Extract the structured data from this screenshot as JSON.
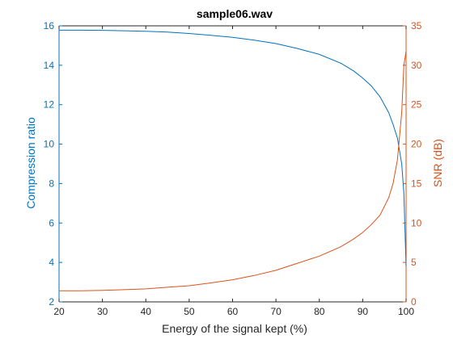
{
  "chart_data": {
    "type": "line",
    "title": "sample06.wav",
    "xlabel": "Energy of the signal kept (%)",
    "ylabel_left": "Compression ratio",
    "ylabel_right": "SNR (dB)",
    "xlim": [
      20,
      100
    ],
    "ylim_left": [
      2,
      16
    ],
    "ylim_right": [
      0,
      35
    ],
    "x_ticks": [
      "20",
      "30",
      "40",
      "50",
      "60",
      "70",
      "80",
      "90",
      "100"
    ],
    "y_ticks_left": [
      "2",
      "4",
      "6",
      "8",
      "10",
      "12",
      "14",
      "16"
    ],
    "y_ticks_right": [
      "0",
      "5",
      "10",
      "15",
      "20",
      "25",
      "30",
      "35"
    ],
    "grid": false,
    "colors": {
      "left": "#0072BD",
      "right": "#D95319",
      "axes": "#262626"
    },
    "series": [
      {
        "axis": "left",
        "x": [
          20,
          25,
          30,
          35,
          40,
          45,
          50,
          55,
          60,
          65,
          70,
          75,
          80,
          85,
          88,
          90,
          92,
          94,
          96,
          97,
          98,
          99,
          99.5,
          100
        ],
        "y": [
          15.78,
          15.78,
          15.77,
          15.75,
          15.72,
          15.68,
          15.61,
          15.52,
          15.42,
          15.27,
          15.1,
          14.85,
          14.55,
          14.1,
          13.7,
          13.35,
          12.95,
          12.4,
          11.6,
          11.0,
          10.3,
          9.0,
          7.5,
          3.8
        ]
      },
      {
        "axis": "right",
        "x": [
          20,
          25,
          30,
          35,
          40,
          45,
          50,
          55,
          60,
          65,
          70,
          75,
          80,
          85,
          88,
          90,
          92,
          94,
          96,
          97,
          98,
          99,
          99.5,
          100
        ],
        "y": [
          1.4,
          1.4,
          1.45,
          1.55,
          1.65,
          1.85,
          2.05,
          2.4,
          2.8,
          3.35,
          4.0,
          4.9,
          5.8,
          7.0,
          8.0,
          8.8,
          9.8,
          11.0,
          13.2,
          15.0,
          18.0,
          24.0,
          30.0,
          31.8
        ]
      }
    ]
  }
}
